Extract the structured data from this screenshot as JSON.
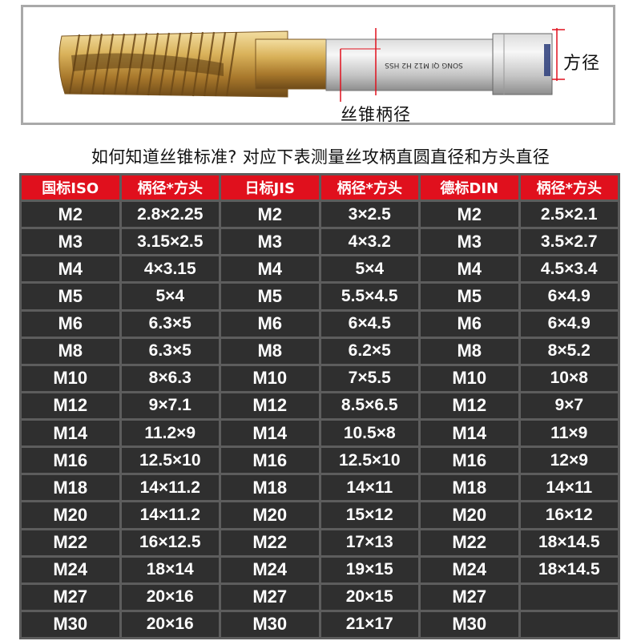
{
  "photo": {
    "tap_engraving": "SONG QI M12 H2 HSS",
    "label_square": "方径",
    "label_shank": "丝锥柄径"
  },
  "headline": "如何知道丝锥标准? 对应下表测量丝攻柄直圆直径和方头直径",
  "table": {
    "headers": [
      "国标ISO",
      "柄径*方头",
      "日标JIS",
      "柄径*方头",
      "德标DIN",
      "柄径*方头"
    ],
    "rows": [
      [
        "M2",
        "2.8×2.25",
        "M2",
        "3×2.5",
        "M2",
        "2.5×2.1"
      ],
      [
        "M3",
        "3.15×2.5",
        "M3",
        "4×3.2",
        "M3",
        "3.5×2.7"
      ],
      [
        "M4",
        "4×3.15",
        "M4",
        "5×4",
        "M4",
        "4.5×3.4"
      ],
      [
        "M5",
        "5×4",
        "M5",
        "5.5×4.5",
        "M5",
        "6×4.9"
      ],
      [
        "M6",
        "6.3×5",
        "M6",
        "6×4.5",
        "M6",
        "6×4.9"
      ],
      [
        "M8",
        "6.3×5",
        "M8",
        "6.2×5",
        "M8",
        "8×5.2"
      ],
      [
        "M10",
        "8×6.3",
        "M10",
        "7×5.5",
        "M10",
        "10×8"
      ],
      [
        "M12",
        "9×7.1",
        "M12",
        "8.5×6.5",
        "M12",
        "9×7"
      ],
      [
        "M14",
        "11.2×9",
        "M14",
        "10.5×8",
        "M14",
        "11×9"
      ],
      [
        "M16",
        "12.5×10",
        "M16",
        "12.5×10",
        "M16",
        "12×9"
      ],
      [
        "M18",
        "14×11.2",
        "M18",
        "14×11",
        "M18",
        "14×11"
      ],
      [
        "M20",
        "14×11.2",
        "M20",
        "15×12",
        "M20",
        "16×12"
      ],
      [
        "M22",
        "16×12.5",
        "M22",
        "17×13",
        "M22",
        "18×14.5"
      ],
      [
        "M24",
        "18×14",
        "M24",
        "19×15",
        "M24",
        "18×14.5"
      ],
      [
        "M27",
        "20×16",
        "M27",
        "20×15",
        "M27",
        ""
      ],
      [
        "M30",
        "20×16",
        "M30",
        "21×17",
        "M30",
        ""
      ]
    ]
  },
  "colors": {
    "header_bg": "#e0101d",
    "cell_bg": "#2f2f2f",
    "grid": "#5d5d5d",
    "marker": "#e0101d",
    "tap_gold": "#c9a24a"
  }
}
